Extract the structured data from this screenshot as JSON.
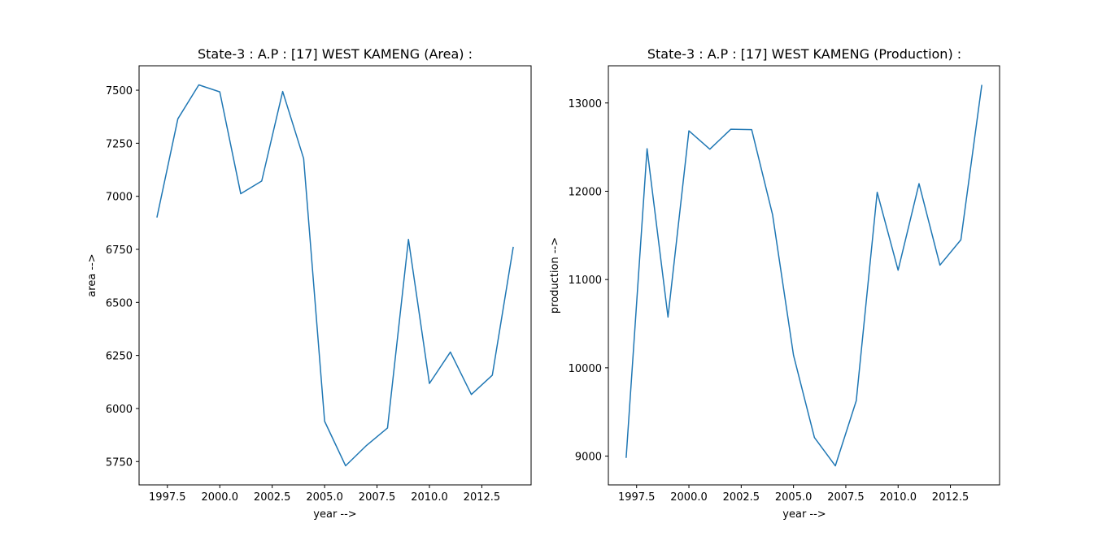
{
  "chart_data": [
    {
      "type": "line",
      "title": "State-3 : A.P : [17] WEST KAMENG (Area) :",
      "xlabel": "year -->",
      "ylabel": "area -->",
      "x": [
        1997,
        1998,
        1999,
        2000,
        2001,
        2002,
        2003,
        2004,
        2005,
        2006,
        2007,
        2008,
        2009,
        2010,
        2011,
        2012,
        2013,
        2014
      ],
      "series": [
        {
          "values": [
            6900,
            7365,
            7525,
            7492,
            7012,
            7072,
            7494,
            7178,
            5940,
            5730,
            5826,
            5908,
            6797,
            6118,
            6266,
            6066,
            6157,
            6762
          ],
          "color": "#1f77b4"
        }
      ],
      "xlim": [
        1996.15,
        2014.85
      ],
      "ylim": [
        5640,
        7615
      ],
      "xticks": [
        "1997.5",
        "2000.0",
        "2002.5",
        "2005.0",
        "2007.5",
        "2010.0",
        "2012.5"
      ],
      "yticks": [
        "5750",
        "6000",
        "6250",
        "6500",
        "6750",
        "7000",
        "7250",
        "7500"
      ],
      "grid": false
    },
    {
      "type": "line",
      "title": "State-3 : A.P : [17] WEST KAMENG (Production) :",
      "xlabel": "year -->",
      "ylabel": "production -->",
      "x": [
        1997,
        1998,
        1999,
        2000,
        2001,
        2002,
        2003,
        2004,
        2005,
        2006,
        2007,
        2008,
        2009,
        2010,
        2011,
        2012,
        2013,
        2014
      ],
      "series": [
        {
          "values": [
            8980,
            12482,
            10575,
            12684,
            12476,
            12702,
            12698,
            11733,
            10143,
            9210,
            8890,
            9627,
            11988,
            11106,
            12086,
            11163,
            11450,
            13205
          ],
          "color": "#1f77b4"
        }
      ],
      "xlim": [
        1996.15,
        2014.85
      ],
      "ylim": [
        8674,
        13421
      ],
      "xticks": [
        "1997.5",
        "2000.0",
        "2002.5",
        "2005.0",
        "2007.5",
        "2010.0",
        "2012.5"
      ],
      "yticks": [
        "9000",
        "10000",
        "11000",
        "12000",
        "13000"
      ],
      "grid": false
    }
  ]
}
